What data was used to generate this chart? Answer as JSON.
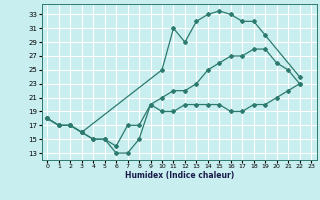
{
  "xlabel": "Humidex (Indice chaleur)",
  "bg_color": "#c8eef0",
  "grid_color": "#ffffff",
  "line_color": "#2d7a6e",
  "xlim": [
    -0.5,
    23.5
  ],
  "ylim": [
    12,
    34.5
  ],
  "xticks": [
    0,
    1,
    2,
    3,
    4,
    5,
    6,
    7,
    8,
    9,
    10,
    11,
    12,
    13,
    14,
    15,
    16,
    17,
    18,
    19,
    20,
    21,
    22,
    23
  ],
  "yticks": [
    13,
    15,
    17,
    19,
    21,
    23,
    25,
    27,
    29,
    31,
    33
  ],
  "line1_x": [
    0,
    1,
    2,
    3,
    10,
    11,
    12,
    13,
    14,
    15,
    16,
    17,
    18,
    19,
    22
  ],
  "line1_y": [
    18,
    17,
    17,
    16,
    25,
    31,
    29,
    32,
    33,
    33.5,
    33,
    32,
    32,
    30,
    24
  ],
  "line2_x": [
    0,
    1,
    2,
    3,
    4,
    5,
    6,
    7,
    8,
    9,
    10,
    11,
    12,
    13,
    14,
    15,
    16,
    17,
    18,
    19,
    20,
    21,
    22
  ],
  "line2_y": [
    18,
    17,
    17,
    16,
    15,
    15,
    14,
    17,
    17,
    20,
    21,
    22,
    22,
    23,
    25,
    26,
    27,
    27,
    28,
    28,
    26,
    25,
    23
  ],
  "line3_x": [
    0,
    1,
    2,
    3,
    4,
    5,
    6,
    7,
    8,
    9,
    10,
    11,
    12,
    13,
    14,
    15,
    16,
    17,
    18,
    19,
    20,
    21,
    22
  ],
  "line3_y": [
    18,
    17,
    17,
    16,
    15,
    15,
    13,
    13,
    15,
    20,
    19,
    19,
    20,
    20,
    20,
    20,
    19,
    19,
    20,
    20,
    21,
    22,
    23
  ]
}
